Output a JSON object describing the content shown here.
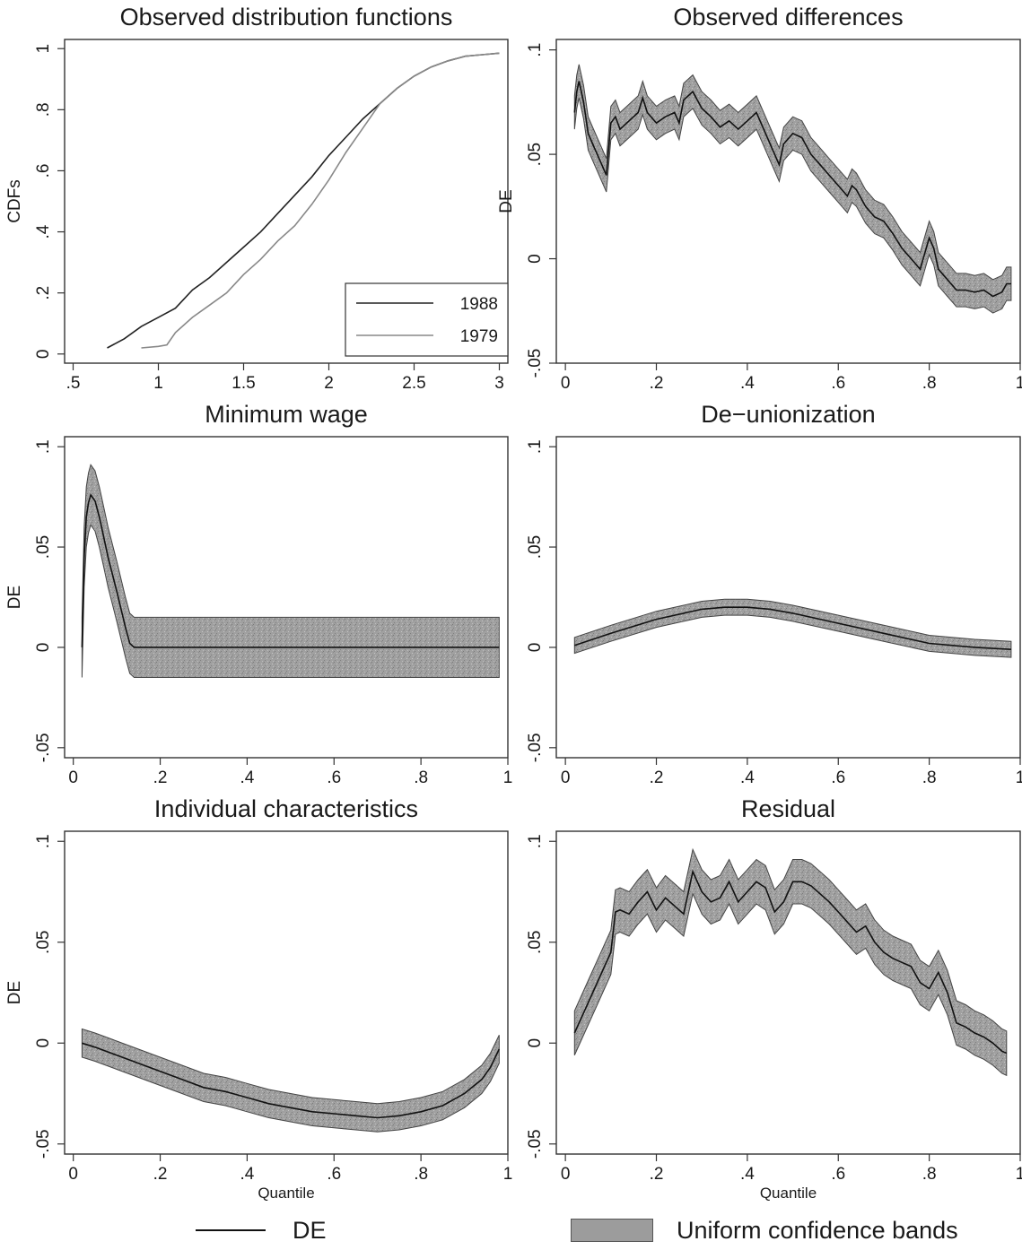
{
  "chart_data": [
    {
      "type": "line",
      "title": "Observed distribution functions",
      "xlabel": "",
      "ylabel": "CDFs",
      "xlim": [
        0.45,
        3.05
      ],
      "ylim": [
        -0.03,
        1.03
      ],
      "xticks": [
        0.5,
        1,
        1.5,
        2,
        2.5,
        3
      ],
      "xtick_labels": [
        ".5",
        "1",
        "1.5",
        "2",
        "2.5",
        "3"
      ],
      "yticks": [
        0,
        0.2,
        0.4,
        0.6,
        0.8,
        1
      ],
      "ytick_labels": [
        "0",
        ".2",
        ".4",
        ".6",
        ".8",
        "1"
      ],
      "legend": "bottom-right",
      "series": [
        {
          "name": "1988",
          "color": "#222222",
          "x": [
            0.7,
            0.8,
            0.9,
            1.0,
            1.1,
            1.2,
            1.3,
            1.4,
            1.5,
            1.6,
            1.7,
            1.8,
            1.9,
            2.0,
            2.1,
            2.2,
            2.3,
            2.4,
            2.5,
            2.6,
            2.7,
            2.8,
            2.9,
            3.0
          ],
          "y": [
            0.02,
            0.05,
            0.09,
            0.12,
            0.15,
            0.21,
            0.25,
            0.3,
            0.35,
            0.4,
            0.46,
            0.52,
            0.58,
            0.65,
            0.71,
            0.77,
            0.82,
            0.87,
            0.91,
            0.94,
            0.96,
            0.975,
            0.98,
            0.985
          ]
        },
        {
          "name": "1979",
          "color": "#888888",
          "x": [
            0.9,
            1.0,
            1.05,
            1.1,
            1.2,
            1.3,
            1.4,
            1.5,
            1.6,
            1.7,
            1.8,
            1.9,
            2.0,
            2.1,
            2.2,
            2.3,
            2.4,
            2.5,
            2.6,
            2.7,
            2.8,
            2.9,
            3.0
          ],
          "y": [
            0.02,
            0.025,
            0.03,
            0.07,
            0.12,
            0.16,
            0.2,
            0.26,
            0.31,
            0.37,
            0.42,
            0.49,
            0.57,
            0.66,
            0.74,
            0.82,
            0.87,
            0.91,
            0.94,
            0.96,
            0.975,
            0.98,
            0.985
          ]
        }
      ]
    },
    {
      "type": "area",
      "title": "Observed differences",
      "xlabel": "",
      "ylabel": "DE",
      "xlim": [
        -0.02,
        1.0
      ],
      "ylim": [
        -0.05,
        0.105
      ],
      "xticks": [
        0,
        0.2,
        0.4,
        0.6,
        0.8,
        1
      ],
      "xtick_labels": [
        "0",
        ".2",
        ".4",
        ".6",
        ".8",
        "1"
      ],
      "yticks": [
        -0.05,
        0,
        0.05,
        0.1
      ],
      "ytick_labels": [
        "-.05",
        "0",
        ".05",
        ".1"
      ],
      "q": [
        0.02,
        0.025,
        0.03,
        0.04,
        0.05,
        0.06,
        0.07,
        0.08,
        0.09,
        0.1,
        0.11,
        0.12,
        0.14,
        0.16,
        0.17,
        0.18,
        0.2,
        0.22,
        0.24,
        0.25,
        0.26,
        0.28,
        0.3,
        0.32,
        0.34,
        0.36,
        0.38,
        0.4,
        0.42,
        0.44,
        0.46,
        0.47,
        0.48,
        0.5,
        0.52,
        0.54,
        0.56,
        0.58,
        0.6,
        0.62,
        0.63,
        0.64,
        0.66,
        0.68,
        0.7,
        0.72,
        0.74,
        0.76,
        0.78,
        0.8,
        0.81,
        0.82,
        0.84,
        0.86,
        0.88,
        0.9,
        0.92,
        0.94,
        0.96,
        0.97,
        0.98
      ],
      "de": [
        0.07,
        0.08,
        0.085,
        0.075,
        0.06,
        0.055,
        0.05,
        0.045,
        0.04,
        0.065,
        0.068,
        0.062,
        0.066,
        0.07,
        0.077,
        0.07,
        0.065,
        0.068,
        0.07,
        0.065,
        0.076,
        0.08,
        0.072,
        0.068,
        0.063,
        0.066,
        0.062,
        0.066,
        0.07,
        0.06,
        0.05,
        0.045,
        0.055,
        0.06,
        0.058,
        0.05,
        0.045,
        0.04,
        0.035,
        0.03,
        0.035,
        0.033,
        0.025,
        0.02,
        0.018,
        0.012,
        0.005,
        0.0,
        -0.005,
        0.01,
        0.005,
        -0.005,
        -0.01,
        -0.015,
        -0.015,
        -0.016,
        -0.015,
        -0.018,
        -0.016,
        -0.012,
        -0.012
      ],
      "band_half_width": 0.008
    },
    {
      "type": "area",
      "title": "Minimum wage",
      "xlabel": "",
      "ylabel": "DE",
      "xlim": [
        -0.02,
        1.0
      ],
      "ylim": [
        -0.055,
        0.105
      ],
      "xticks": [
        0,
        0.2,
        0.4,
        0.6,
        0.8,
        1
      ],
      "xtick_labels": [
        "0",
        ".2",
        ".4",
        ".6",
        ".8",
        "1"
      ],
      "yticks": [
        -0.05,
        0,
        0.05,
        0.1
      ],
      "ytick_labels": [
        "-.05",
        "0",
        ".05",
        ".1"
      ],
      "q": [
        0.02,
        0.025,
        0.03,
        0.035,
        0.04,
        0.05,
        0.06,
        0.07,
        0.08,
        0.1,
        0.12,
        0.13,
        0.14,
        0.2,
        0.4,
        0.6,
        0.8,
        0.98
      ],
      "de": [
        0.0,
        0.045,
        0.065,
        0.072,
        0.076,
        0.073,
        0.065,
        0.055,
        0.045,
        0.028,
        0.01,
        0.002,
        0.0,
        0.0,
        0.0,
        0.0,
        0.0,
        0.0
      ],
      "band_half_width": 0.015
    },
    {
      "type": "area",
      "title": "De−unionization",
      "xlabel": "",
      "ylabel": "",
      "xlim": [
        -0.02,
        1.0
      ],
      "ylim": [
        -0.055,
        0.105
      ],
      "xticks": [
        0,
        0.2,
        0.4,
        0.6,
        0.8,
        1
      ],
      "xtick_labels": [
        "0",
        ".2",
        ".4",
        ".6",
        ".8",
        "1"
      ],
      "yticks": [
        -0.05,
        0,
        0.05,
        0.1
      ],
      "ytick_labels": [
        "-.05",
        "0",
        ".05",
        ".1"
      ],
      "q": [
        0.02,
        0.1,
        0.2,
        0.3,
        0.35,
        0.4,
        0.45,
        0.5,
        0.6,
        0.7,
        0.8,
        0.9,
        0.98
      ],
      "de": [
        0.001,
        0.007,
        0.014,
        0.019,
        0.02,
        0.02,
        0.019,
        0.017,
        0.012,
        0.007,
        0.002,
        0.0,
        -0.001
      ],
      "band_half_width": 0.004
    },
    {
      "type": "area",
      "title": "Individual characteristics",
      "xlabel": "Quantile",
      "ylabel": "DE",
      "xlim": [
        -0.02,
        1.0
      ],
      "ylim": [
        -0.055,
        0.105
      ],
      "xticks": [
        0,
        0.2,
        0.4,
        0.6,
        0.8,
        1
      ],
      "xtick_labels": [
        "0",
        ".2",
        ".4",
        ".6",
        ".8",
        "1"
      ],
      "yticks": [
        -0.05,
        0,
        0.05,
        0.1
      ],
      "ytick_labels": [
        "-.05",
        "0",
        ".05",
        ".1"
      ],
      "q": [
        0.02,
        0.05,
        0.1,
        0.15,
        0.2,
        0.25,
        0.3,
        0.35,
        0.4,
        0.45,
        0.5,
        0.55,
        0.6,
        0.65,
        0.7,
        0.75,
        0.8,
        0.85,
        0.9,
        0.94,
        0.96,
        0.98
      ],
      "de": [
        0.0,
        -0.002,
        -0.006,
        -0.01,
        -0.014,
        -0.018,
        -0.022,
        -0.024,
        -0.027,
        -0.03,
        -0.032,
        -0.034,
        -0.035,
        -0.036,
        -0.037,
        -0.036,
        -0.034,
        -0.031,
        -0.025,
        -0.018,
        -0.012,
        -0.003
      ],
      "band_half_width": 0.007
    },
    {
      "type": "area",
      "title": "Residual",
      "xlabel": "Quantile",
      "ylabel": "",
      "xlim": [
        -0.02,
        1.0
      ],
      "ylim": [
        -0.055,
        0.105
      ],
      "xticks": [
        0,
        0.2,
        0.4,
        0.6,
        0.8,
        1
      ],
      "xtick_labels": [
        "0",
        ".2",
        ".4",
        ".6",
        ".8",
        "1"
      ],
      "yticks": [
        -0.05,
        0,
        0.05,
        0.1
      ],
      "ytick_labels": [
        "-.05",
        "0",
        ".05",
        ".1"
      ],
      "q": [
        0.02,
        0.05,
        0.08,
        0.1,
        0.11,
        0.12,
        0.14,
        0.16,
        0.18,
        0.2,
        0.22,
        0.24,
        0.26,
        0.28,
        0.3,
        0.32,
        0.34,
        0.36,
        0.38,
        0.4,
        0.42,
        0.44,
        0.46,
        0.48,
        0.5,
        0.52,
        0.54,
        0.56,
        0.58,
        0.6,
        0.62,
        0.64,
        0.66,
        0.68,
        0.7,
        0.72,
        0.74,
        0.76,
        0.78,
        0.8,
        0.82,
        0.84,
        0.86,
        0.88,
        0.9,
        0.92,
        0.94,
        0.96,
        0.97
      ],
      "de": [
        0.005,
        0.02,
        0.035,
        0.045,
        0.065,
        0.066,
        0.064,
        0.07,
        0.075,
        0.066,
        0.072,
        0.068,
        0.064,
        0.085,
        0.075,
        0.07,
        0.072,
        0.08,
        0.07,
        0.075,
        0.08,
        0.077,
        0.065,
        0.07,
        0.08,
        0.08,
        0.078,
        0.074,
        0.07,
        0.065,
        0.06,
        0.055,
        0.058,
        0.05,
        0.045,
        0.042,
        0.04,
        0.038,
        0.03,
        0.027,
        0.035,
        0.025,
        0.01,
        0.008,
        0.005,
        0.003,
        0.0,
        -0.004,
        -0.005
      ],
      "band_half_width": 0.011
    }
  ],
  "legend": {
    "line_label": "DE",
    "band_label": "Uniform confidence bands",
    "band_color": "#9c9c9c",
    "line_color": "#111111"
  }
}
